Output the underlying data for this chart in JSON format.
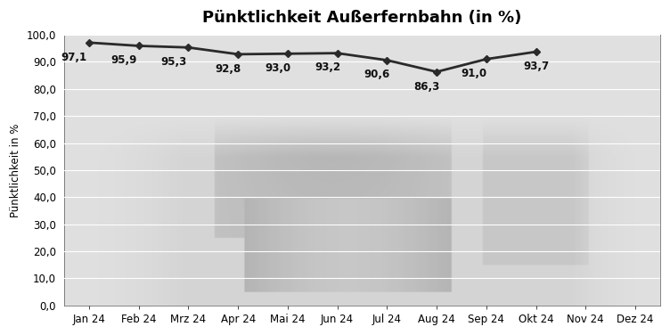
{
  "title": "Pünktlichkeit Außerfernbahn (in %)",
  "ylabel": "Pünktlichkeit in %",
  "x_labels": [
    "Jan 24",
    "Feb 24",
    "Mrz 24",
    "Apr 24",
    "Mai 24",
    "Jun 24",
    "Jul 24",
    "Aug 24",
    "Sep 24",
    "Okt 24",
    "Nov 24",
    "Dez 24"
  ],
  "x_indices": [
    0,
    1,
    2,
    3,
    4,
    5,
    6,
    7,
    8,
    9,
    10,
    11
  ],
  "data_indices": [
    0,
    1,
    2,
    3,
    4,
    5,
    6,
    7,
    8,
    9
  ],
  "values": [
    97.1,
    95.9,
    95.3,
    92.8,
    93.0,
    93.2,
    90.6,
    86.3,
    91.0,
    93.7
  ],
  "labels": [
    "97,1",
    "95,9",
    "95,3",
    "92,8",
    "93,0",
    "93,2",
    "90,6",
    "86,3",
    "91,0",
    "93,7"
  ],
  "ylim": [
    0,
    100
  ],
  "yticks": [
    0,
    10,
    20,
    30,
    40,
    50,
    60,
    70,
    80,
    90,
    100
  ],
  "ytick_labels": [
    "0,0",
    "10,0",
    "20,0",
    "30,0",
    "40,0",
    "50,0",
    "60,0",
    "70,0",
    "80,0",
    "90,0",
    "100,0"
  ],
  "line_color": "#2a2a2a",
  "marker": "D",
  "marker_size": 4,
  "line_width": 2.0,
  "plot_bg_color": "#e0e0e0",
  "fig_bg_color": "#ffffff",
  "grid_color": "#ffffff",
  "title_fontsize": 13,
  "label_fontsize": 8.5,
  "tick_fontsize": 8.5,
  "annotation_fontsize": 8.5,
  "annotation_color": "#111111"
}
